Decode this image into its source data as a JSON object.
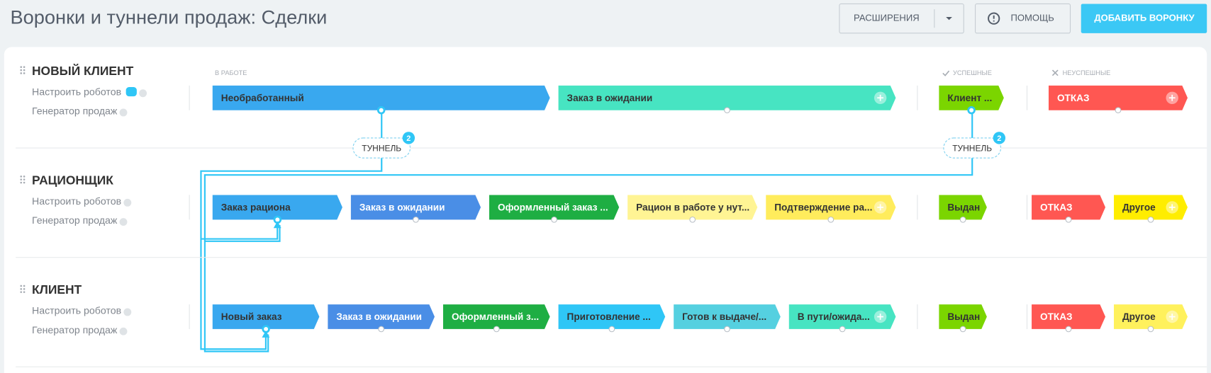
{
  "header": {
    "title": "Воронки и туннели продаж: Сделки",
    "extensions_button": "РАСШИРЕНИЯ",
    "help_button": "ПОМОЩЬ",
    "add_button": "ДОБАВИТЬ ВОРОНКУ"
  },
  "columns": {
    "in_progress": "В РАБОТЕ",
    "success": "УСПЕШНЫЕ",
    "failure": "НЕУСПЕШНЫЕ"
  },
  "funnels": [
    {
      "name": "НОВЫЙ КЛИЕНТ",
      "robots_link": "Настроить роботов",
      "generator_link": "Генератор продаж",
      "in_progress": [
        {
          "label": "Необработанный",
          "color": "#39a8ef"
        },
        {
          "label": "Заказ в ожидании",
          "color": "#47e4c2"
        }
      ],
      "success": [
        {
          "label": "Клиент ...",
          "color": "#7bd500"
        }
      ],
      "failure": [
        {
          "label": "ОТКАЗ",
          "color": "#ff5752"
        }
      ]
    },
    {
      "name": "РАЦИОНЩИК",
      "robots_link": "Настроить роботов",
      "generator_link": "Генератор продаж",
      "in_progress": [
        {
          "label": "Заказ рациона",
          "color": "#39a8ef"
        },
        {
          "label": "Заказ в ожидании",
          "color": "#4a8ee6"
        },
        {
          "label": "Оформленный заказ ...",
          "color": "#1eae43"
        },
        {
          "label": "Рацион в работе у нут...",
          "color": "#fff494"
        },
        {
          "label": "Подтверждение ра...",
          "color": "#ffec5c"
        }
      ],
      "success": [
        {
          "label": "Выдан",
          "color": "#7bd500"
        }
      ],
      "failure": [
        {
          "label": "ОТКАЗ",
          "color": "#ff5752"
        },
        {
          "label": "Другое",
          "color": "#ffed00"
        }
      ]
    },
    {
      "name": "КЛИЕНТ",
      "robots_link": "Настроить роботов",
      "generator_link": "Генератор продаж",
      "in_progress": [
        {
          "label": "Новый заказ",
          "color": "#39a8ef"
        },
        {
          "label": "Заказ в ожидании",
          "color": "#4a8ee6"
        },
        {
          "label": "Оформленный з...",
          "color": "#1eae43"
        },
        {
          "label": "Приготовление ...",
          "color": "#2fc6f6"
        },
        {
          "label": "Готов к выдаче/...",
          "color": "#55d0e0"
        },
        {
          "label": "В пути/ожида...",
          "color": "#47e4c2"
        }
      ],
      "success": [
        {
          "label": "Выдан",
          "color": "#7bd500"
        }
      ],
      "failure": [
        {
          "label": "ОТКАЗ",
          "color": "#ff5752"
        },
        {
          "label": "Другое",
          "color": "#fff15c"
        }
      ]
    }
  ],
  "tunnels": [
    {
      "label": "ТУННЕЛЬ",
      "count": 2
    },
    {
      "label": "ТУННЕЛЬ",
      "count": 2
    }
  ]
}
